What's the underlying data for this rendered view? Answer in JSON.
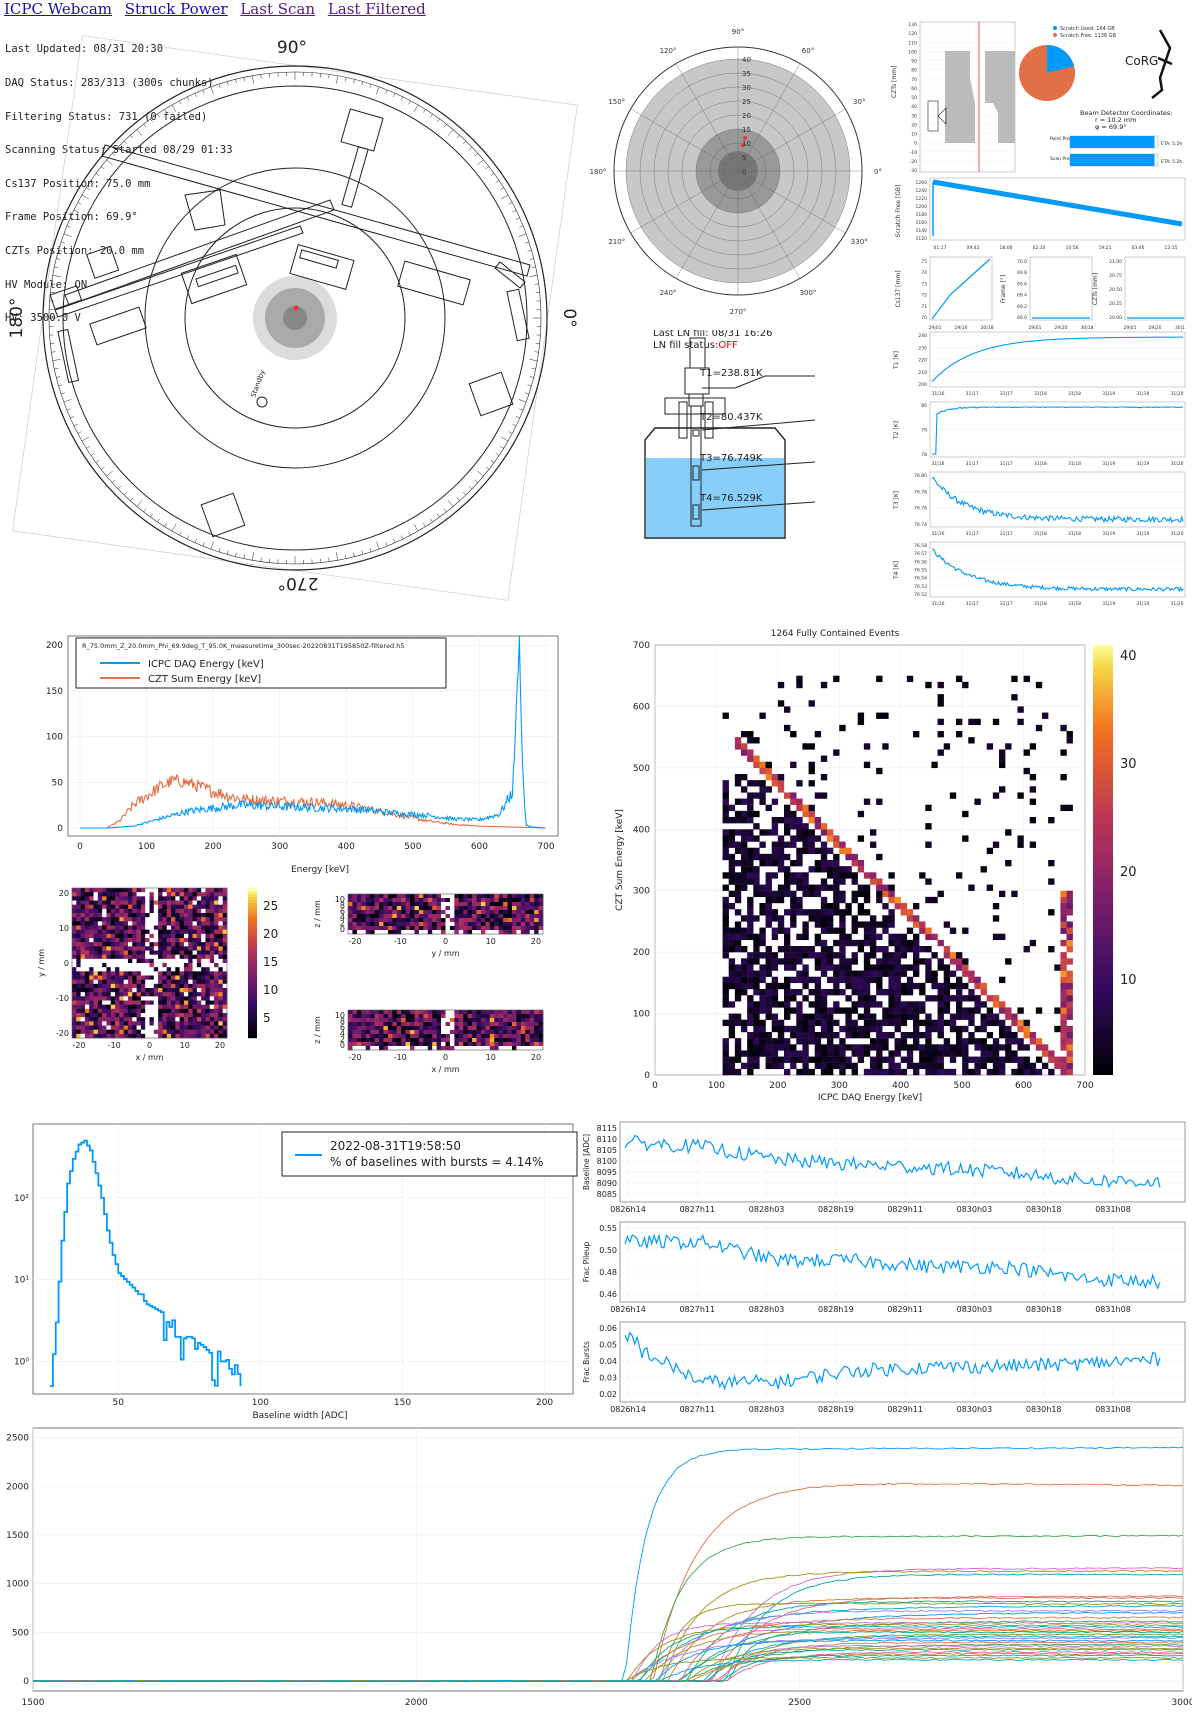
{
  "nav": {
    "links": [
      "ICPC Webcam",
      "Struck Power",
      "Last Scan",
      "Last Filtered"
    ]
  },
  "status": {
    "lines": [
      "Last Updated: 08/31 20:30",
      "DAQ Status: 283/313 (300s chunks)",
      "Filtering Status: 731 (0 failed)",
      "Scanning Status: Started 08/29 01:33",
      "Cs137 Position: 75.0 mm",
      "Frame Position: 69.9°",
      "CZTs Position: 20.0 mm",
      "HV Module: ON",
      "HV: 3500.0 V"
    ]
  },
  "scanner": {
    "angle_labels": [
      "90°",
      "180°",
      "0°",
      "270°"
    ],
    "standby_label": "Standby"
  },
  "polar": {
    "angle_labels": [
      "90°",
      "60°",
      "30°",
      "0°",
      "330°",
      "300°",
      "270°",
      "240°",
      "210°",
      "180°",
      "150°",
      "120°"
    ],
    "radial_labels": [
      "0",
      "5",
      "10",
      "15",
      "20",
      "25",
      "30",
      "35",
      "40"
    ]
  },
  "ln": {
    "last_fill": "Last LN fill: 08/31 16:26",
    "fill_status_label": "LN fill status:",
    "fill_status_value": "OFF",
    "status_color": "#ff0000",
    "liquid_color": "#87cefa",
    "temps": [
      "T1=238.81K",
      "T2=80.437K",
      "T3=76.749K",
      "T4=76.529K"
    ]
  },
  "czt_panel": {
    "ylabel": "CZTs [mm]",
    "yticks": [
      "130",
      "120",
      "110",
      "100",
      "90",
      "80",
      "70",
      "60",
      "50",
      "40",
      "30",
      "20",
      "10",
      "0",
      "-10",
      "-20",
      "-30"
    ],
    "legend": [
      "Scratch Used: 164 GB",
      "Scratch Free: 1136 GB"
    ],
    "scratch_used_gb": 164,
    "scratch_free_gb": 1136,
    "logo": "CoRG",
    "beam_title": "Beam Detector Coordinates:",
    "beam_r": "r = 10.2 mm",
    "beam_phi": "φ = 69.9°",
    "point_label": "Point Progress",
    "scan_label": "Scan Progress",
    "point_eta": "ETA: 5.2h",
    "scan_eta": "ETA: 5.2h",
    "point_progress": 0.96,
    "scan_progress": 0.96
  },
  "scratch_chart": {
    "ylabel": "Scratch Free [GB]",
    "yticks": [
      "1260",
      "1240",
      "1220",
      "1200",
      "1180",
      "1160",
      "1140",
      "1120"
    ],
    "xticks": [
      "01:17",
      "09:42",
      "18:06",
      "02:30",
      "10:56",
      "19:21",
      "03:46",
      "12:15"
    ]
  },
  "position_charts": {
    "cs137": {
      "ylabel": "Cs137 [mm]",
      "yticks": [
        "75",
        "74",
        "73",
        "72",
        "71",
        "70"
      ],
      "xticks": [
        "29|01",
        "29|10",
        "30|18"
      ]
    },
    "frame": {
      "ylabel": "Frame [°]",
      "yticks": [
        "70.0",
        "69.8",
        "69.6",
        "69.4",
        "69.2",
        "69.0"
      ],
      "xticks": [
        "29|01",
        "29|20",
        "30|18"
      ]
    },
    "czts": {
      "ylabel": "CZTs [mm]",
      "yticks": [
        "21.00",
        "20.75",
        "20.50",
        "20.25",
        "20.00"
      ],
      "xticks": [
        "29|01",
        "29|20",
        "30|1"
      ]
    }
  },
  "temp_charts": [
    {
      "ylabel": "T1 [K]",
      "yticks": [
        "240",
        "230",
        "220",
        "210",
        "200"
      ],
      "xticks": [
        "31|16",
        "31|17",
        "31|17",
        "31|18",
        "31|18",
        "31|19",
        "31|19",
        "31|20"
      ]
    },
    {
      "ylabel": "T2 [K]",
      "yticks": [
        "80",
        "79",
        "78"
      ],
      "xticks": [
        "31|16",
        "31|17",
        "31|17",
        "31|18",
        "31|18",
        "31|19",
        "31|19",
        "31|20"
      ]
    },
    {
      "ylabel": "T3 [K]",
      "yticks": [
        "76.80",
        "76.78",
        "76.76",
        "76.74"
      ],
      "xticks": [
        "31|16",
        "31|17",
        "31|17",
        "31|18",
        "31|18",
        "31|19",
        "31|19",
        "31|20"
      ]
    },
    {
      "ylabel": "T4 [K]",
      "yticks": [
        "76.58",
        "76.57",
        "76.56",
        "76.55",
        "76.54",
        "76.53",
        "76.52"
      ],
      "xticks": [
        "31|16",
        "31|17",
        "31|17",
        "31|18",
        "31|18",
        "31|19",
        "31|19",
        "31|20"
      ]
    }
  ],
  "energy_spectrum": {
    "filename": "R_75.0mm_Z_20.0mm_Phi_69.9deg_T_95.0K_measuretime_300sec-20220831T195850Z-filtered.h5",
    "xlabel": "Energy [keV]",
    "legend": [
      "ICPC DAQ Energy [keV]",
      "CZT Sum Energy [keV]"
    ]
  },
  "czt_maps": {
    "xy": {
      "xlabel": "x / mm",
      "ylabel": "y / mm",
      "ticks": [
        "-20",
        "-10",
        "0",
        "10",
        "20"
      ],
      "colorbar": [
        "25",
        "20",
        "15",
        "10",
        "5"
      ]
    },
    "zy": {
      "xlabel": "y / mm",
      "ylabel": "z / mm",
      "ticks": [
        "-20",
        "-10",
        "0",
        "10",
        "20"
      ],
      "zticks": [
        "10",
        "8",
        "6",
        "4",
        "2",
        "0"
      ]
    },
    "zx": {
      "xlabel": "x / mm",
      "ylabel": "z / mm",
      "ticks": [
        "-20",
        "-10",
        "0",
        "10",
        "20"
      ],
      "zticks": [
        "10",
        "8",
        "6",
        "4",
        "2",
        "0"
      ]
    }
  },
  "heatmap2d": {
    "title": "1264 Fully Contained Events",
    "xlabel": "ICPC DAQ Energy [keV]",
    "ylabel": "CZT Sum Energy [keV]",
    "colorbar": [
      "40",
      "30",
      "20",
      "10"
    ]
  },
  "baseline_hist": {
    "xlabel": "Baseline width [ADC]",
    "legend_line1": "2022-08-31T19:58:50",
    "legend_line2": "% of baselines with bursts = 4.14%",
    "xticks": [
      "50",
      "100",
      "150",
      "200"
    ],
    "yticks": [
      "10²",
      "10¹",
      "10⁰"
    ]
  },
  "baseline_trends": [
    {
      "ylabel": "Baseline [ADC]",
      "yticks": [
        "8115",
        "8110",
        "8105",
        "8100",
        "8095",
        "8090",
        "8085"
      ]
    },
    {
      "ylabel": "Frac Pileup",
      "yticks": [
        "0.55",
        "0.50",
        "0.48",
        "0.46"
      ]
    },
    {
      "ylabel": "Frac Bursts",
      "yticks": [
        "0.06",
        "0.05",
        "0.04",
        "0.03",
        "0.02"
      ]
    }
  ],
  "trend_xticks": [
    "0826h14",
    "0827h11",
    "0828h03",
    "0828h19",
    "0829h11",
    "0830h03",
    "0830h18",
    "0831h08"
  ],
  "waveforms": {
    "yticks": [
      "2500",
      "2000",
      "1500",
      "1000",
      "500",
      "0"
    ],
    "xticks": [
      "1500",
      "2000",
      "2500",
      "3000"
    ]
  },
  "chart_data": [
    {
      "type": "line",
      "title": "",
      "xlabel": "Energy [keV]",
      "ylabel": "",
      "xlim": [
        0,
        700
      ],
      "ylim": [
        0,
        210
      ],
      "xticks": [
        0,
        100,
        200,
        300,
        400,
        500,
        600,
        700
      ],
      "yticks": [
        0,
        50,
        100,
        150,
        200
      ],
      "series": [
        {
          "name": "ICPC DAQ Energy [keV]",
          "color": "#009AFA",
          "x": [
            0,
            40,
            80,
            120,
            160,
            200,
            240,
            280,
            320,
            360,
            400,
            440,
            480,
            520,
            560,
            600,
            630,
            650,
            660,
            665,
            670,
            680,
            700
          ],
          "y": [
            0,
            0,
            2,
            10,
            18,
            22,
            25,
            24,
            23,
            22,
            21,
            19,
            16,
            14,
            10,
            9,
            15,
            40,
            205,
            60,
            3,
            1,
            0
          ]
        },
        {
          "name": "CZT Sum Energy [keV]",
          "color": "#E26F46",
          "x": [
            0,
            40,
            60,
            80,
            120,
            140,
            160,
            180,
            200,
            240,
            280,
            320,
            360,
            400,
            440,
            480,
            520,
            560,
            600,
            650,
            700
          ],
          "y": [
            0,
            0,
            8,
            25,
            45,
            52,
            50,
            45,
            40,
            32,
            30,
            29,
            28,
            25,
            20,
            14,
            8,
            4,
            2,
            1,
            0
          ]
        }
      ]
    },
    {
      "type": "heatmap",
      "title": "1264 Fully Contained Events",
      "xlabel": "ICPC DAQ Energy [keV]",
      "ylabel": "CZT Sum Energy [keV]",
      "xlim": [
        0,
        700
      ],
      "ylim": [
        0,
        700
      ],
      "xticks": [
        0,
        100,
        200,
        300,
        400,
        500,
        600,
        700
      ],
      "yticks": [
        0,
        100,
        200,
        300,
        400,
        500,
        600,
        700
      ],
      "clim": [
        0,
        42
      ]
    },
    {
      "type": "line",
      "xlabel": "Baseline width [ADC]",
      "xlim": [
        20,
        210
      ],
      "yscale": "log",
      "series": [
        {
          "name": "2022-08-31T19:58:50",
          "x": [
            26,
            28,
            30,
            32,
            34,
            36,
            38,
            40,
            42,
            44,
            46,
            48,
            50,
            55,
            60,
            65,
            70,
            75,
            80,
            85,
            90,
            93
          ],
          "y": [
            0.5,
            3,
            30,
            150,
            300,
            450,
            500,
            380,
            200,
            100,
            40,
            20,
            12,
            8,
            5,
            4,
            2,
            2,
            1.5,
            1,
            1,
            0.5
          ]
        }
      ]
    },
    {
      "type": "line",
      "ylabel": "Baseline [ADC]",
      "categories": [
        "0826h14",
        "0827h11",
        "0828h03",
        "0828h19",
        "0829h11",
        "0830h03",
        "0830h18",
        "0831h08"
      ],
      "series": [
        {
          "name": "",
          "values": [
            8115,
            8112,
            8104,
            8101,
            8099,
            8096,
            8091,
            8090
          ]
        }
      ]
    },
    {
      "type": "line",
      "ylabel": "Frac Pileup",
      "categories": [
        "0826h14",
        "0827h11",
        "0828h03",
        "0828h19",
        "0829h11",
        "0830h03",
        "0830h18",
        "0831h08"
      ],
      "series": [
        {
          "name": "",
          "values": [
            0.53,
            0.53,
            0.5,
            0.5,
            0.49,
            0.49,
            0.47,
            0.465
          ]
        }
      ]
    },
    {
      "type": "line",
      "ylabel": "Frac Bursts",
      "categories": [
        "0826h14",
        "0827h11",
        "0828h03",
        "0828h19",
        "0829h11",
        "0830h03",
        "0830h18",
        "0831h08"
      ],
      "series": [
        {
          "name": "",
          "values": [
            0.055,
            0.02,
            0.02,
            0.03,
            0.033,
            0.034,
            0.036,
            0.04
          ]
        }
      ]
    }
  ]
}
